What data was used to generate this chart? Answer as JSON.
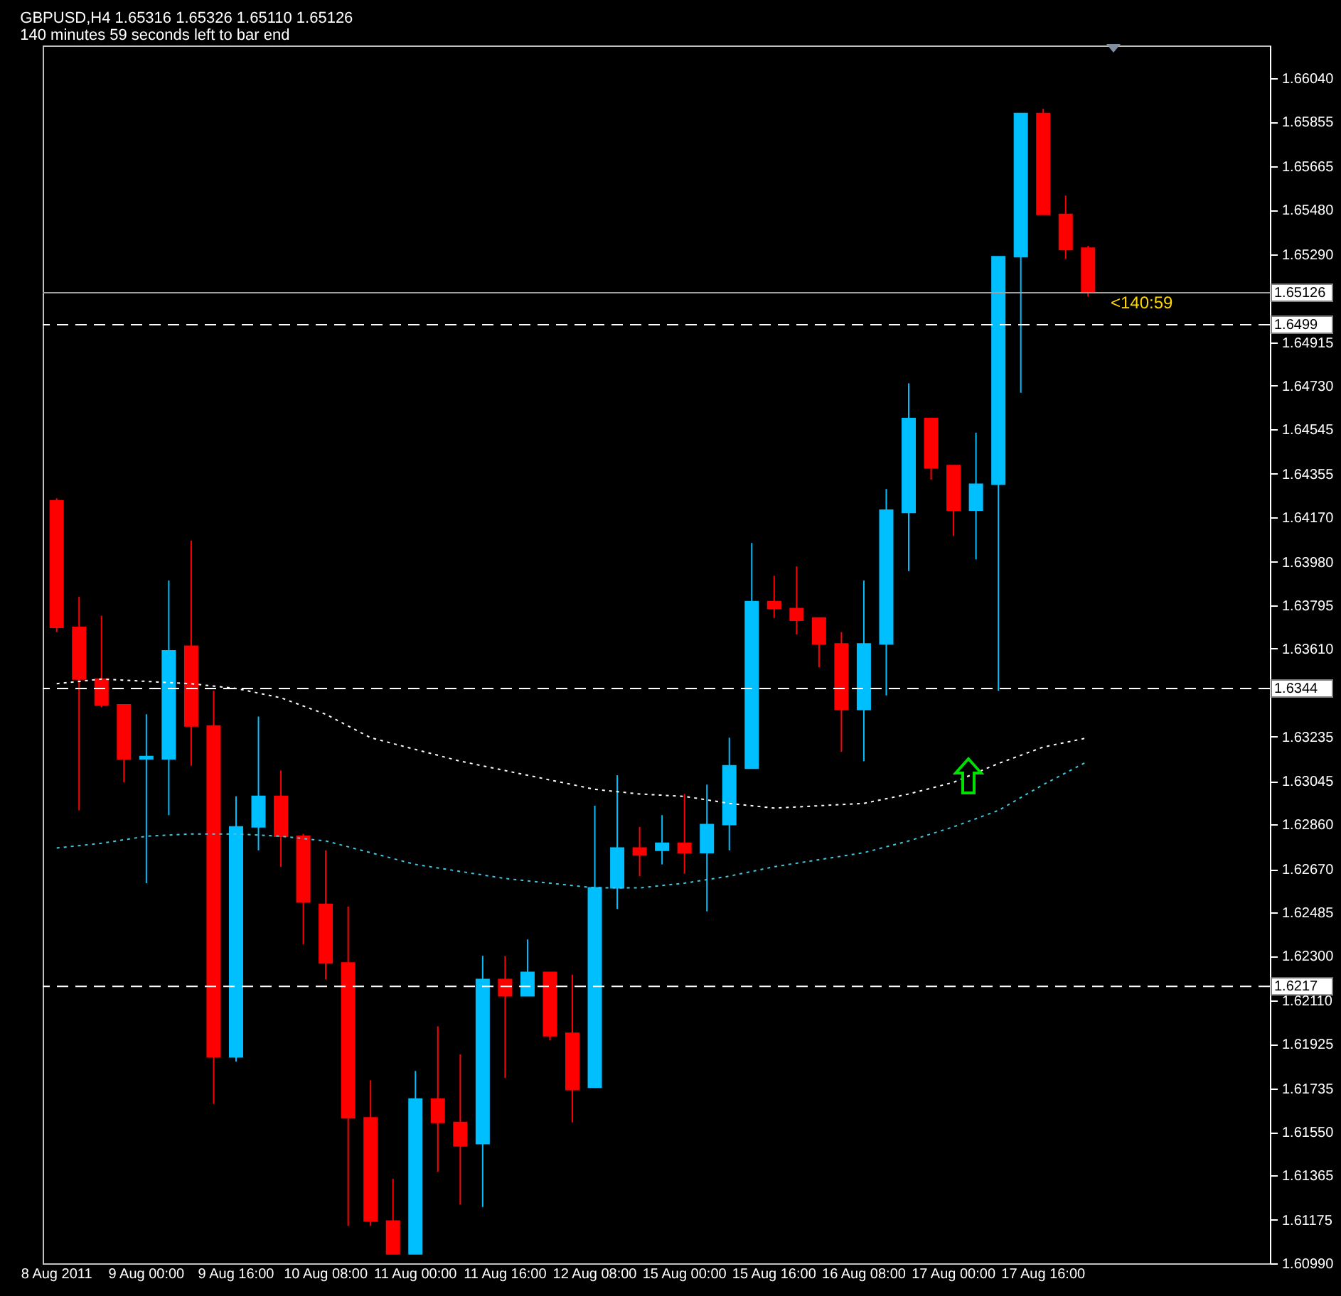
{
  "chart_data": {
    "type": "candlestick",
    "title": "GBPUSD,H4  1.65316 1.65326 1.65110 1.65126",
    "subtitle": "140 minutes 59 seconds left to bar end",
    "categories": [
      "8 Aug 2011",
      null,
      null,
      null,
      "9 Aug 00:00",
      null,
      null,
      null,
      "9 Aug 16:00",
      null,
      null,
      null,
      "10 Aug 08:00",
      null,
      null,
      null,
      "11 Aug 00:00",
      null,
      null,
      null,
      "11 Aug 16:00",
      null,
      null,
      null,
      "12 Aug 08:00",
      null,
      null,
      null,
      "15 Aug 00:00",
      null,
      null,
      null,
      "15 Aug 16:00",
      null,
      null,
      null,
      "16 Aug 08:00",
      null,
      null,
      null,
      "17 Aug 00:00",
      null,
      null,
      null,
      "17 Aug 16:00",
      null,
      null
    ],
    "ohlc": [
      [
        1.6424,
        1.6425,
        1.6368,
        1.637
      ],
      [
        1.637,
        1.6383,
        1.6292,
        1.6348
      ],
      [
        1.6348,
        1.6375,
        1.6336,
        1.6337
      ],
      [
        1.6337,
        1.6337,
        1.6304,
        1.6314
      ],
      [
        1.6314,
        1.6333,
        1.6261,
        1.6315
      ],
      [
        1.6314,
        1.639,
        1.629,
        1.636
      ],
      [
        1.6362,
        1.6407,
        1.6311,
        1.6328
      ],
      [
        1.6328,
        1.6343,
        1.6167,
        1.6187
      ],
      [
        1.6187,
        1.6298,
        1.6185,
        1.6285
      ],
      [
        1.6285,
        1.6332,
        1.6275,
        1.6298
      ],
      [
        1.6298,
        1.6309,
        1.6268,
        1.6281
      ],
      [
        1.6281,
        1.6282,
        1.6235,
        1.6253
      ],
      [
        1.6252,
        1.6275,
        1.622,
        1.6227
      ],
      [
        1.6227,
        1.6251,
        1.6115,
        1.6161
      ],
      [
        1.6161,
        1.6177,
        1.6115,
        1.6117
      ],
      [
        1.6117,
        1.6135,
        1.6103,
        1.6103
      ],
      [
        1.6103,
        1.6181,
        1.6103,
        1.6169
      ],
      [
        1.6169,
        1.62,
        1.6138,
        1.6159
      ],
      [
        1.6159,
        1.6188,
        1.6124,
        1.6149
      ],
      [
        1.615,
        1.623,
        1.6123,
        1.622
      ],
      [
        1.622,
        1.623,
        1.6178,
        1.6213
      ],
      [
        1.6213,
        1.6237,
        1.6213,
        1.6223
      ],
      [
        1.6223,
        1.6223,
        1.6194,
        1.6196
      ],
      [
        1.6197,
        1.6222,
        1.6159,
        1.6173
      ],
      [
        1.6174,
        1.6294,
        1.6174,
        1.6259
      ],
      [
        1.6259,
        1.6307,
        1.625,
        1.6276
      ],
      [
        1.6276,
        1.6285,
        1.6264,
        1.6273
      ],
      [
        1.6275,
        1.629,
        1.6269,
        1.6278
      ],
      [
        1.6278,
        1.6299,
        1.6265,
        1.6274
      ],
      [
        1.6274,
        1.6303,
        1.6249,
        1.6286
      ],
      [
        1.6286,
        1.6323,
        1.6275,
        1.6311
      ],
      [
        1.631,
        1.6406,
        1.631,
        1.6381
      ],
      [
        1.6381,
        1.6392,
        1.6374,
        1.6378
      ],
      [
        1.6378,
        1.6396,
        1.6367,
        1.6373
      ],
      [
        1.6374,
        1.6374,
        1.6353,
        1.6363
      ],
      [
        1.6363,
        1.6368,
        1.6317,
        1.6335
      ],
      [
        1.6335,
        1.639,
        1.6313,
        1.6363
      ],
      [
        1.6363,
        1.6429,
        1.6341,
        1.642
      ],
      [
        1.6419,
        1.6474,
        1.6394,
        1.6459
      ],
      [
        1.6459,
        1.6459,
        1.6433,
        1.6438
      ],
      [
        1.6439,
        1.6439,
        1.6409,
        1.642
      ],
      [
        1.642,
        1.6453,
        1.6399,
        1.6431
      ],
      [
        1.6431,
        1.6528,
        1.6343,
        1.6528
      ],
      [
        1.6528,
        1.6589,
        1.647,
        1.6589
      ],
      [
        1.6589,
        1.6591,
        1.6546,
        1.6546
      ],
      [
        1.6546,
        1.6554,
        1.6527,
        1.6531
      ],
      [
        1.65316,
        1.65326,
        1.6511,
        1.65126
      ]
    ],
    "colors": [
      "#ff0000",
      "#ff0000",
      "#ff0000",
      "#ff0000",
      "#00bfff",
      "#00bfff",
      "#ff0000",
      "#ff0000",
      "#00bfff",
      "#00bfff",
      "#ff0000",
      "#ff0000",
      "#ff0000",
      "#ff0000",
      "#ff0000",
      "#ff0000",
      "#00bfff",
      "#ff0000",
      "#ff0000",
      "#00bfff",
      "#ff0000",
      "#00bfff",
      "#ff0000",
      "#ff0000",
      "#00bfff",
      "#00bfff",
      "#ff0000",
      "#00bfff",
      "#ff0000",
      "#00bfff",
      "#00bfff",
      "#00bfff",
      "#ff0000",
      "#ff0000",
      "#ff0000",
      "#ff0000",
      "#00bfff",
      "#00bfff",
      "#00bfff",
      "#ff0000",
      "#ff0000",
      "#00bfff",
      "#00bfff",
      "#00bfff",
      "#ff0000",
      "#ff0000",
      "#ff0000"
    ],
    "series": [
      {
        "type": "line",
        "color": "#ffffff",
        "line_style": "dotted",
        "values": [
          1.6346,
          null,
          1.6348,
          null,
          1.6347,
          null,
          1.6346,
          null,
          1.6344,
          null,
          1.634,
          null,
          1.6333,
          null,
          1.6323,
          null,
          1.6318,
          null,
          1.6313,
          null,
          1.6309,
          null,
          1.6305,
          null,
          1.6301,
          null,
          1.6299,
          null,
          1.6298,
          null,
          1.6295,
          null,
          1.6293,
          null,
          1.6294,
          null,
          1.6295,
          null,
          1.6299,
          null,
          1.6304,
          null,
          1.6312,
          null,
          1.6319,
          null,
          1.6323
        ]
      },
      {
        "type": "line",
        "color": "#40c8e0",
        "line_style": "dotted",
        "values": [
          1.6276,
          null,
          1.6278,
          null,
          1.6281,
          null,
          1.6282,
          null,
          1.6282,
          null,
          1.6281,
          null,
          1.6279,
          null,
          1.6274,
          null,
          1.6269,
          null,
          1.6266,
          null,
          1.6263,
          null,
          1.6261,
          null,
          1.6259,
          null,
          1.6259,
          null,
          1.6261,
          null,
          1.6264,
          null,
          1.6268,
          null,
          1.6271,
          null,
          1.6274,
          null,
          1.6279,
          null,
          1.6285,
          null,
          1.6292,
          null,
          1.6303,
          null,
          1.6313
        ]
      }
    ],
    "ref_lines": [
      {
        "axis": "y",
        "value": 1.65126,
        "label": "1.65126",
        "color": "#a0a0a0",
        "line_style": "solid"
      },
      {
        "axis": "y",
        "value": 1.6499,
        "label": "1.6499",
        "color": "#ffffff",
        "line_style": "dashed"
      },
      {
        "axis": "y",
        "value": 1.6344,
        "label": "1.6344",
        "color": "#ffffff",
        "line_style": "dashed"
      },
      {
        "axis": "y",
        "value": 1.6217,
        "label": "1.6217",
        "color": "#ffffff",
        "line_style": "dashed"
      }
    ],
    "annotations": [
      {
        "text": "<140:59",
        "y": 1.65126
      }
    ],
    "ylim": [
      1.6099,
      1.6618
    ],
    "yticks": [
      {
        "value": 1.6604,
        "label": "1.66040"
      },
      1.65855,
      1.65665,
      {
        "value": 1.6548,
        "label": "1.65480"
      },
      {
        "value": 1.6529,
        "label": "1.65290"
      },
      1.64915,
      {
        "value": 1.6473,
        "label": "1.64730"
      },
      1.64545,
      1.64355,
      {
        "value": 1.6417,
        "label": "1.64170"
      },
      {
        "value": 1.6398,
        "label": "1.63980"
      },
      1.63795,
      {
        "value": 1.6361,
        "label": "1.63610"
      },
      1.63235,
      1.63045,
      {
        "value": 1.6286,
        "label": "1.62860"
      },
      {
        "value": 1.6267,
        "label": "1.62670"
      },
      1.62485,
      {
        "value": 1.623,
        "label": "1.62300"
      },
      {
        "value": 1.6211,
        "label": "1.62110"
      },
      1.61925,
      1.61735,
      {
        "value": 1.6155,
        "label": "1.61550"
      },
      1.61365,
      1.61175,
      {
        "value": 1.6099,
        "label": "1.60990"
      }
    ]
  }
}
